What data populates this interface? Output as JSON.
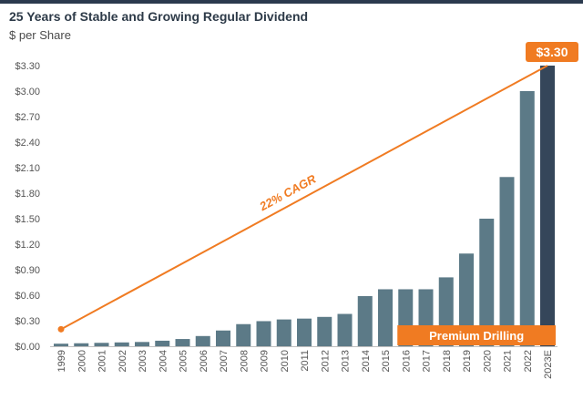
{
  "title": "25 Years of Stable and Growing Regular Dividend",
  "subtitle": "$ per Share",
  "chart_data": {
    "type": "bar",
    "title": "25 Years of Stable and Growing Regular Dividend",
    "ylabel": "$ per Share",
    "xlabel": "",
    "ylim": [
      0,
      3.3
    ],
    "yticks": [
      0,
      0.3,
      0.6,
      0.9,
      1.2,
      1.5,
      1.8,
      2.1,
      2.4,
      2.7,
      3.0,
      3.3
    ],
    "ytick_labels": [
      "$0.00",
      "$0.30",
      "$0.60",
      "$0.90",
      "$1.20",
      "$1.50",
      "$1.80",
      "$2.10",
      "$2.40",
      "$2.70",
      "$3.00",
      "$3.30"
    ],
    "grid": false,
    "categories": [
      "1999",
      "2000",
      "2001",
      "2002",
      "2003",
      "2004",
      "2005",
      "2006",
      "2007",
      "2008",
      "2009",
      "2010",
      "2011",
      "2012",
      "2013",
      "2014",
      "2015",
      "2016",
      "2017",
      "2018",
      "2019",
      "2020",
      "2021",
      "2022",
      "2023E"
    ],
    "values": [
      0.03,
      0.035,
      0.04,
      0.045,
      0.05,
      0.065,
      0.085,
      0.12,
      0.185,
      0.26,
      0.295,
      0.315,
      0.325,
      0.345,
      0.38,
      0.59,
      0.67,
      0.67,
      0.67,
      0.81,
      1.09,
      1.5,
      1.99,
      3.0,
      3.3
    ],
    "bar_color": "#5c7a87",
    "highlight_color": "#35465a",
    "highlight_category": "2023E",
    "trend_line": {
      "label": "22% CAGR",
      "from": [
        "1999",
        0.2
      ],
      "to": [
        "2023E",
        3.3
      ],
      "color": "#f07b22"
    },
    "callout": {
      "text": "$3.30",
      "category": "2023E",
      "color": "#f07b22"
    },
    "band": {
      "text": "Premium Drilling",
      "from": "2016",
      "to": "2023E",
      "color": "#f07b22"
    }
  }
}
